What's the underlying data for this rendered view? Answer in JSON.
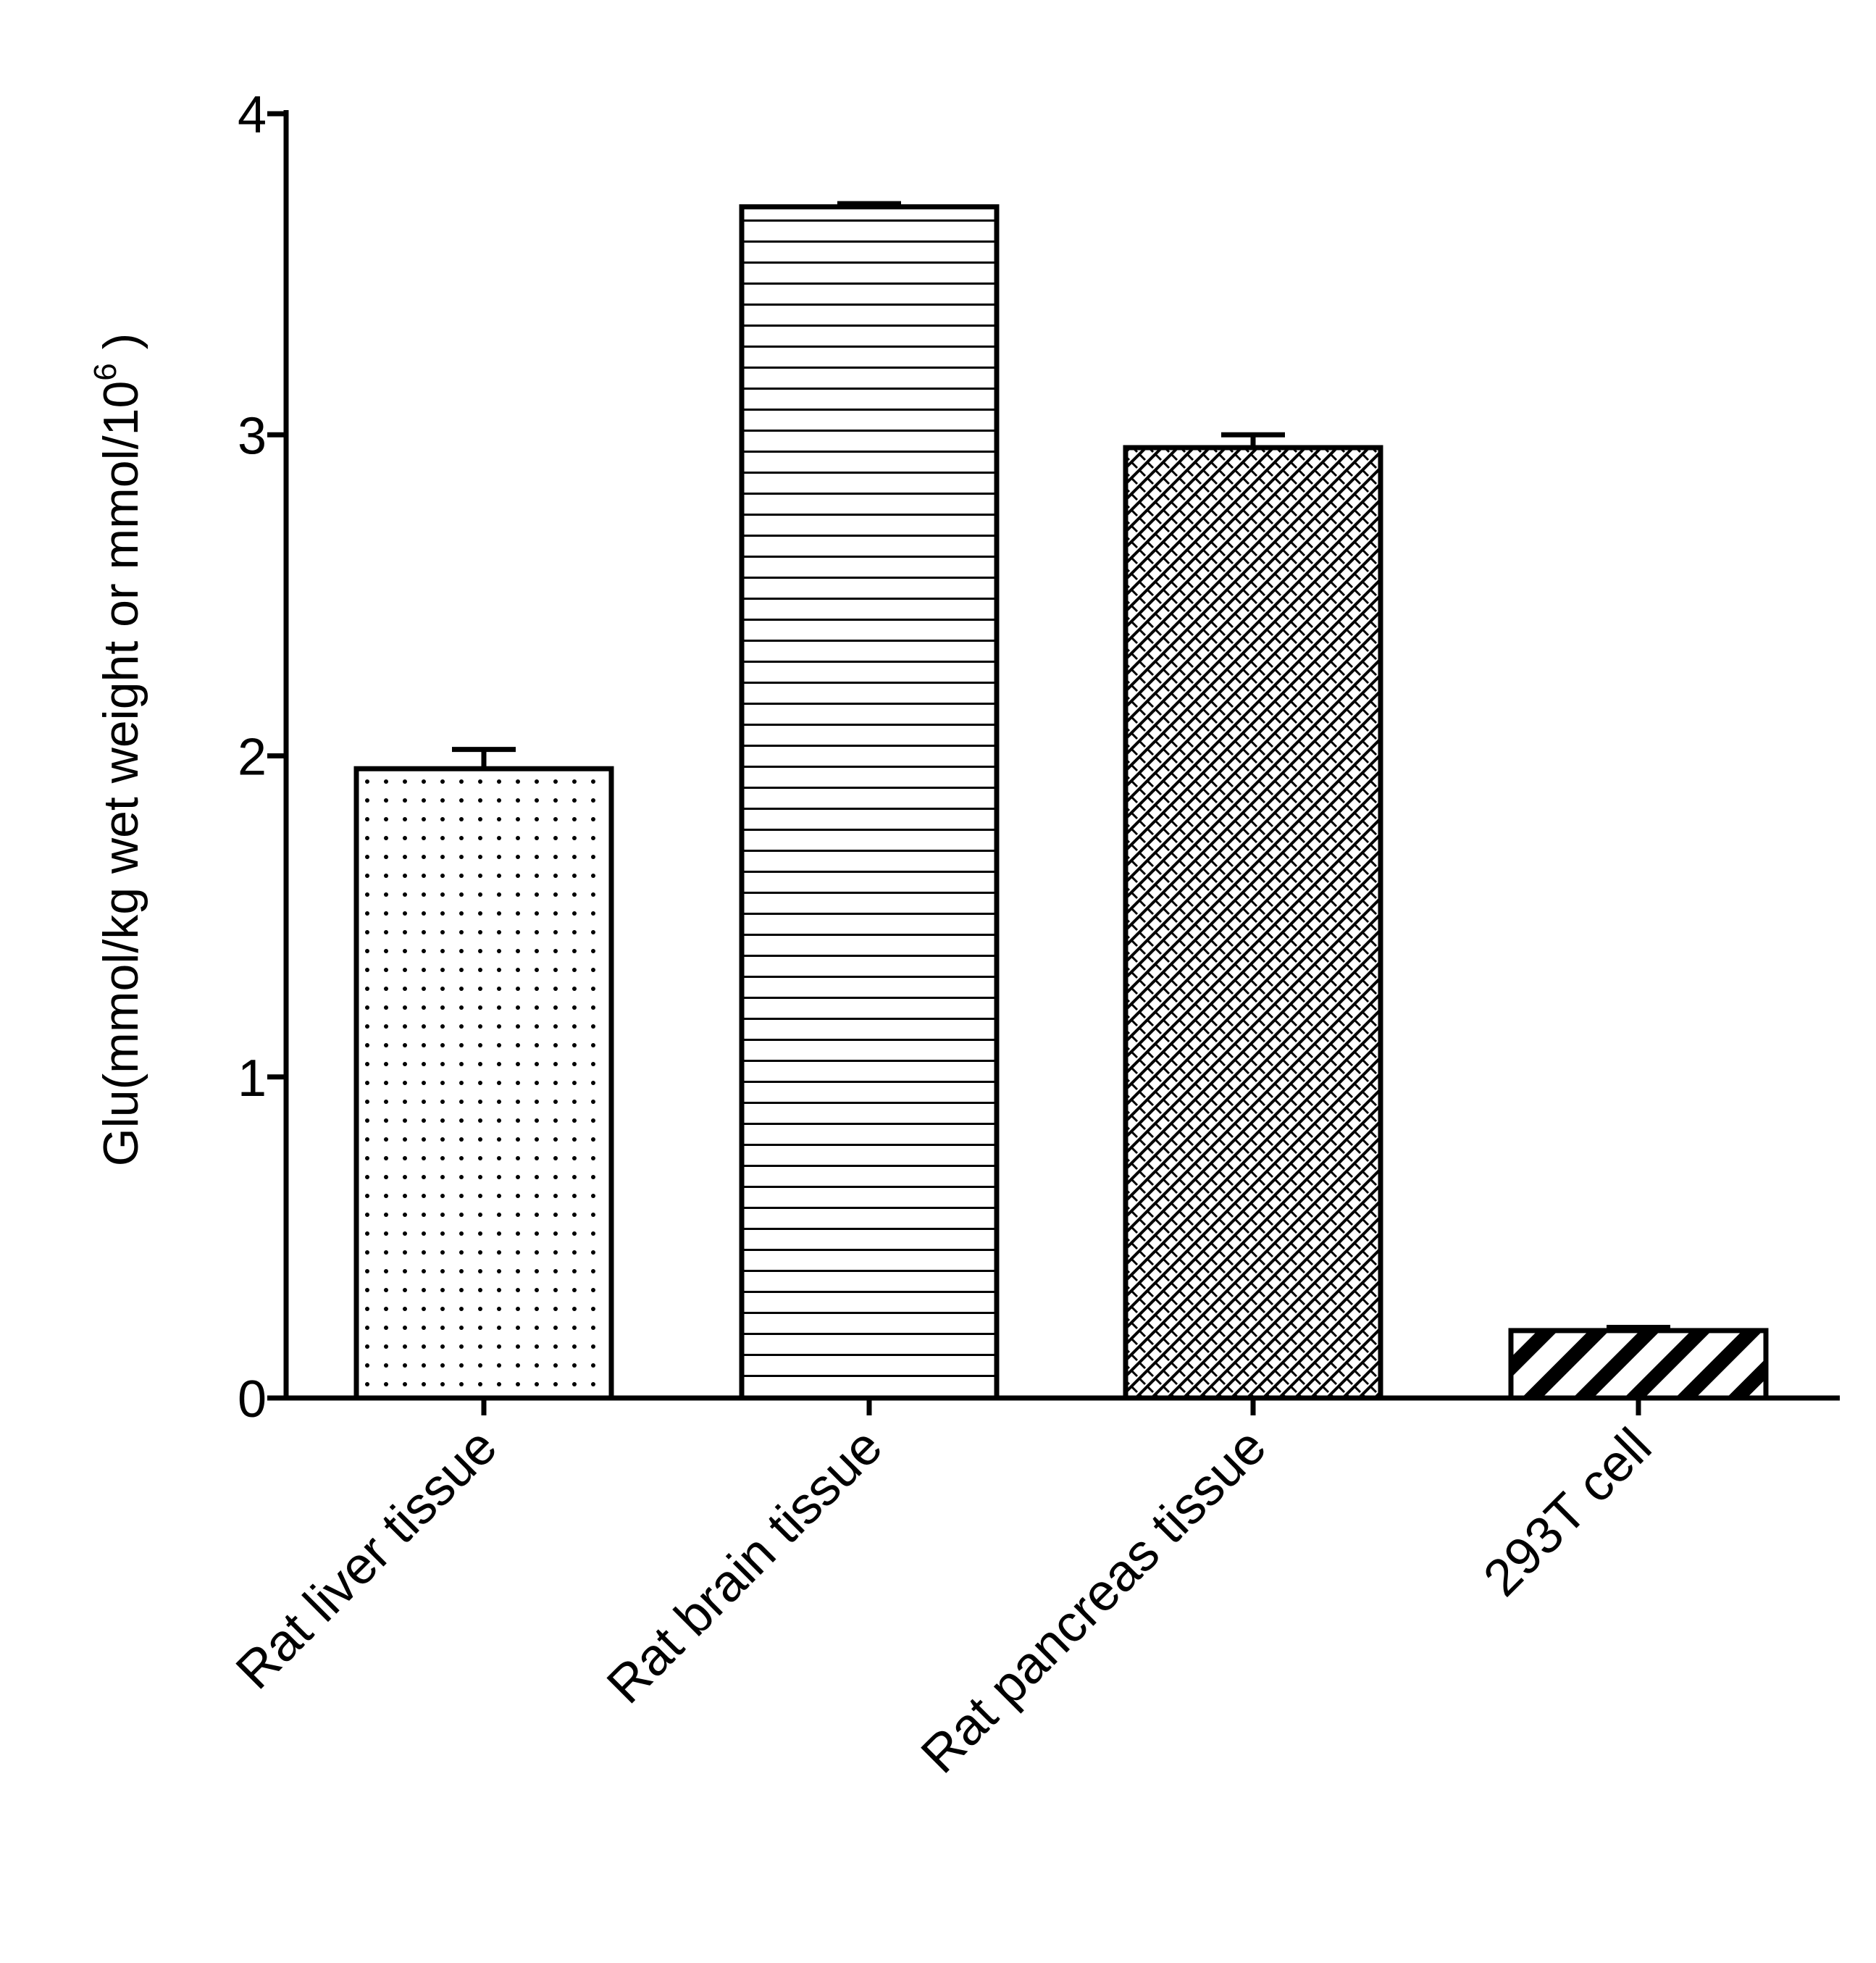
{
  "chart_data": {
    "type": "bar",
    "title": "",
    "xlabel": "",
    "ylabel_main": "Glu(mmol/kg wet weight or mmol/10",
    "ylabel_sup": "6",
    "ylabel_end": " )",
    "categories": [
      "Rat liver tissue",
      "Rat brain tissue",
      "Rat pancreas tissue",
      "293T cell"
    ],
    "values": [
      1.96,
      3.71,
      2.96,
      0.21
    ],
    "errors": [
      0.06,
      0.01,
      0.04,
      0.01
    ],
    "patterns": [
      "dots",
      "horizontal-lines",
      "crosshatch",
      "diagonal-stripes"
    ],
    "ylim": [
      0,
      4
    ],
    "yticks": [
      "0",
      "1",
      "2",
      "3",
      "4"
    ],
    "grid": false,
    "legend": "none",
    "colors": {
      "stroke": "#000000",
      "fill": "#ffffff"
    }
  }
}
